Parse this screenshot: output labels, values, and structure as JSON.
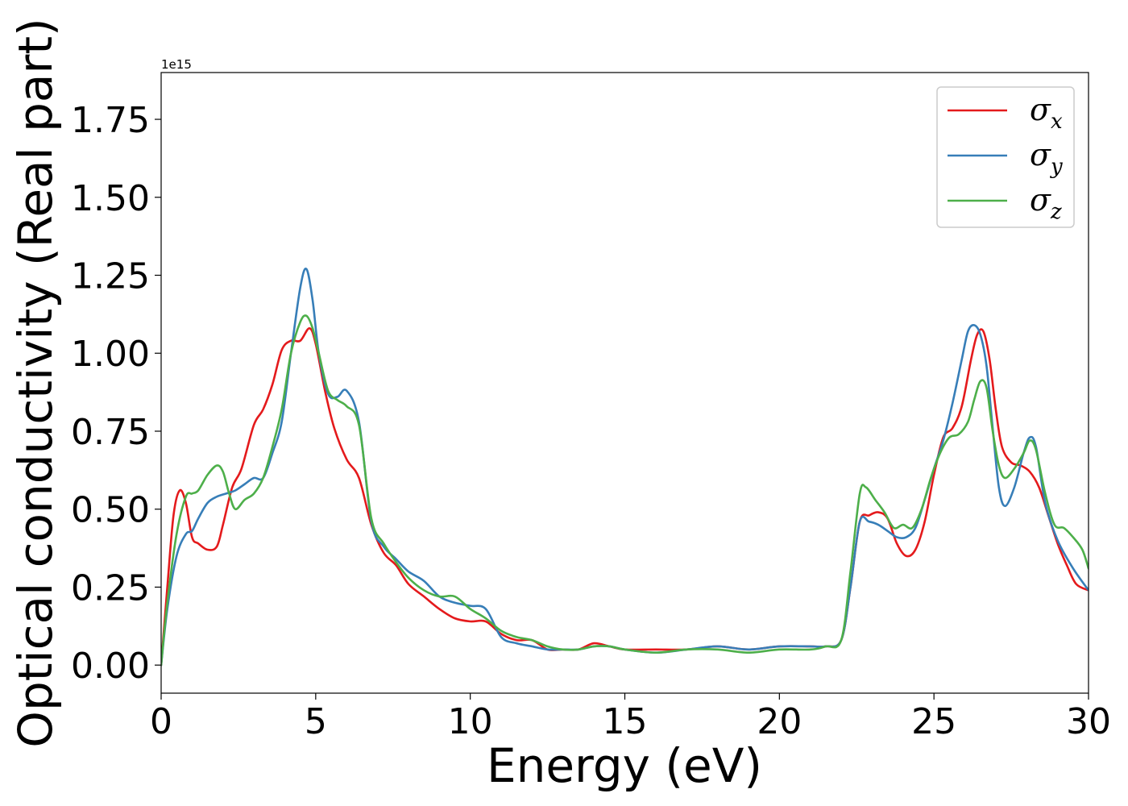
{
  "chart_data": {
    "type": "line",
    "xlabel": "Energy (eV)",
    "ylabel": "Optical conductivity (Real part)",
    "offset_text": "1e15",
    "xlim": [
      0,
      30
    ],
    "ylim": [
      -0.09,
      1.9
    ],
    "xticks": [
      0,
      5,
      10,
      15,
      20,
      25,
      30
    ],
    "xtick_labels": [
      "0",
      "5",
      "10",
      "15",
      "20",
      "25",
      "30"
    ],
    "yticks": [
      0.0,
      0.25,
      0.5,
      0.75,
      1.0,
      1.25,
      1.5,
      1.75
    ],
    "ytick_labels": [
      "0.00",
      "0.25",
      "0.50",
      "0.75",
      "1.00",
      "1.25",
      "1.50",
      "1.75"
    ],
    "grid": false,
    "legend_position": "upper right",
    "series": [
      {
        "name": "σ",
        "subscript": "x",
        "color": "#e41a1c",
        "x": [
          0,
          0.2,
          0.4,
          0.6,
          0.8,
          1.0,
          1.2,
          1.5,
          1.8,
          2.0,
          2.3,
          2.6,
          3.0,
          3.3,
          3.6,
          3.9,
          4.2,
          4.5,
          4.8,
          5.0,
          5.3,
          5.6,
          6.0,
          6.4,
          6.8,
          7.2,
          7.6,
          8.0,
          8.5,
          9.0,
          9.5,
          10.0,
          10.5,
          11.0,
          11.5,
          12.0,
          12.5,
          13.0,
          13.5,
          14.0,
          14.5,
          15.0,
          16.0,
          17.0,
          18.0,
          19.0,
          20.0,
          21.0,
          21.5,
          22.0,
          22.3,
          22.6,
          22.9,
          23.2,
          23.5,
          23.8,
          24.1,
          24.4,
          24.7,
          25.0,
          25.3,
          25.6,
          25.9,
          26.2,
          26.4,
          26.6,
          26.8,
          27.0,
          27.2,
          27.5,
          27.8,
          28.1,
          28.4,
          28.7,
          29.0,
          29.3,
          29.6,
          30.0
        ],
        "values": [
          0.0,
          0.25,
          0.48,
          0.56,
          0.52,
          0.41,
          0.39,
          0.37,
          0.38,
          0.45,
          0.57,
          0.63,
          0.77,
          0.82,
          0.9,
          1.01,
          1.04,
          1.04,
          1.08,
          1.03,
          0.88,
          0.76,
          0.66,
          0.6,
          0.45,
          0.36,
          0.32,
          0.26,
          0.22,
          0.18,
          0.15,
          0.14,
          0.14,
          0.1,
          0.08,
          0.08,
          0.05,
          0.05,
          0.05,
          0.07,
          0.06,
          0.05,
          0.05,
          0.05,
          0.06,
          0.05,
          0.06,
          0.06,
          0.06,
          0.08,
          0.25,
          0.46,
          0.48,
          0.49,
          0.47,
          0.39,
          0.35,
          0.37,
          0.46,
          0.61,
          0.73,
          0.76,
          0.83,
          0.98,
          1.06,
          1.07,
          0.98,
          0.82,
          0.7,
          0.65,
          0.64,
          0.62,
          0.57,
          0.48,
          0.39,
          0.32,
          0.26,
          0.24
        ]
      },
      {
        "name": "σ",
        "subscript": "y",
        "color": "#377eb8",
        "x": [
          0,
          0.2,
          0.5,
          0.8,
          1.0,
          1.2,
          1.5,
          1.8,
          2.1,
          2.4,
          2.7,
          3.0,
          3.3,
          3.6,
          3.9,
          4.2,
          4.5,
          4.7,
          4.9,
          5.1,
          5.4,
          5.7,
          6.0,
          6.4,
          6.8,
          7.2,
          7.6,
          8.0,
          8.5,
          9.0,
          9.5,
          10.0,
          10.5,
          11.0,
          11.5,
          12.0,
          12.5,
          13.0,
          13.5,
          14.0,
          14.5,
          15.0,
          16.0,
          17.0,
          18.0,
          19.0,
          20.0,
          21.0,
          21.5,
          22.0,
          22.3,
          22.6,
          22.9,
          23.2,
          23.5,
          23.8,
          24.1,
          24.4,
          24.7,
          25.0,
          25.3,
          25.6,
          25.9,
          26.1,
          26.3,
          26.5,
          26.7,
          26.9,
          27.1,
          27.3,
          27.6,
          27.9,
          28.1,
          28.3,
          28.6,
          29.0,
          29.5,
          30.0
        ],
        "values": [
          0.0,
          0.18,
          0.35,
          0.42,
          0.43,
          0.47,
          0.52,
          0.54,
          0.55,
          0.56,
          0.58,
          0.6,
          0.6,
          0.68,
          0.78,
          1.0,
          1.21,
          1.27,
          1.17,
          1.0,
          0.87,
          0.86,
          0.88,
          0.78,
          0.46,
          0.38,
          0.34,
          0.3,
          0.27,
          0.22,
          0.2,
          0.19,
          0.18,
          0.09,
          0.07,
          0.06,
          0.05,
          0.05,
          0.05,
          0.06,
          0.06,
          0.05,
          0.04,
          0.05,
          0.06,
          0.05,
          0.06,
          0.06,
          0.06,
          0.08,
          0.25,
          0.46,
          0.46,
          0.45,
          0.43,
          0.41,
          0.41,
          0.44,
          0.53,
          0.63,
          0.72,
          0.84,
          0.98,
          1.07,
          1.09,
          1.06,
          0.96,
          0.76,
          0.57,
          0.51,
          0.57,
          0.68,
          0.73,
          0.7,
          0.52,
          0.4,
          0.31,
          0.24
        ]
      },
      {
        "name": "σ",
        "subscript": "z",
        "color": "#4daf4a",
        "x": [
          0,
          0.2,
          0.5,
          0.8,
          1.0,
          1.2,
          1.5,
          1.8,
          2.0,
          2.2,
          2.4,
          2.7,
          3.0,
          3.3,
          3.6,
          3.9,
          4.2,
          4.5,
          4.7,
          4.9,
          5.1,
          5.4,
          5.7,
          6.0,
          6.4,
          6.8,
          7.2,
          7.6,
          8.0,
          8.5,
          9.0,
          9.5,
          10.0,
          10.5,
          11.0,
          11.5,
          12.0,
          12.5,
          13.0,
          13.5,
          14.0,
          14.5,
          15.0,
          16.0,
          17.0,
          18.0,
          19.0,
          20.0,
          21.0,
          21.5,
          22.0,
          22.3,
          22.6,
          22.8,
          23.1,
          23.4,
          23.7,
          24.0,
          24.3,
          24.6,
          24.9,
          25.2,
          25.5,
          25.8,
          26.1,
          26.3,
          26.5,
          26.7,
          26.9,
          27.1,
          27.3,
          27.6,
          27.9,
          28.1,
          28.3,
          28.6,
          28.9,
          29.2,
          29.5,
          29.8,
          30.0
        ],
        "values": [
          0.0,
          0.2,
          0.42,
          0.54,
          0.55,
          0.56,
          0.61,
          0.64,
          0.62,
          0.55,
          0.5,
          0.53,
          0.55,
          0.6,
          0.7,
          0.82,
          1.0,
          1.1,
          1.12,
          1.08,
          1.0,
          0.88,
          0.85,
          0.83,
          0.77,
          0.47,
          0.39,
          0.33,
          0.28,
          0.24,
          0.22,
          0.22,
          0.18,
          0.15,
          0.11,
          0.09,
          0.08,
          0.06,
          0.05,
          0.05,
          0.06,
          0.06,
          0.05,
          0.04,
          0.05,
          0.05,
          0.04,
          0.05,
          0.05,
          0.06,
          0.08,
          0.3,
          0.55,
          0.57,
          0.53,
          0.49,
          0.44,
          0.45,
          0.44,
          0.5,
          0.6,
          0.68,
          0.73,
          0.74,
          0.78,
          0.85,
          0.91,
          0.89,
          0.75,
          0.64,
          0.6,
          0.63,
          0.68,
          0.72,
          0.69,
          0.55,
          0.45,
          0.44,
          0.41,
          0.37,
          0.31
        ]
      }
    ]
  }
}
